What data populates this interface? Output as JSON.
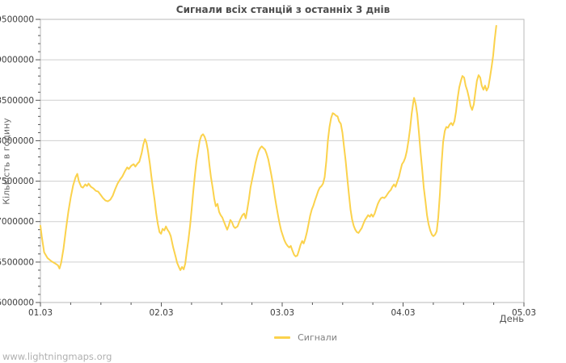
{
  "watermark": "www.lightningmaps.org",
  "chart_data": {
    "type": "line",
    "title": "Сигнали всіх станцій з останніх 3 днів",
    "xlabel": "День",
    "ylabel": "Кількість в годину",
    "xlim": [
      1,
      5
    ],
    "ylim": [
      6000000,
      9500000
    ],
    "grid": "horizontal-only",
    "legend_position": "bottom-center",
    "x_tick_values": [
      1,
      2,
      3,
      4,
      5
    ],
    "x_tick_labels": [
      "01.03",
      "02.03",
      "03.03",
      "04.03",
      "05.03"
    ],
    "x_minor_tick_step": 0.25,
    "y_tick_values": [
      6000000,
      6500000,
      7000000,
      7500000,
      8000000,
      8500000,
      9000000,
      9500000
    ],
    "y_tick_labels": [
      "6000000",
      "6500000",
      "7000000",
      "7500000",
      "8000000",
      "8500000",
      "9000000",
      "9500000"
    ],
    "y_minor_tick_step": 100000,
    "line_color": "#FBD24C",
    "grid_color": "#CFCFCF",
    "axis_color": "#B8B8B8",
    "tick_color": "#555555",
    "tick_label_color": "#3c3c3c",
    "series": [
      {
        "name": "Сигнали",
        "x_unit": "day-of-march",
        "points": [
          [
            1.0,
            6950000
          ],
          [
            1.011,
            6820000
          ],
          [
            1.031,
            6620000
          ],
          [
            1.058,
            6550000
          ],
          [
            1.091,
            6510000
          ],
          [
            1.125,
            6480000
          ],
          [
            1.145,
            6460000
          ],
          [
            1.158,
            6420000
          ],
          [
            1.171,
            6490000
          ],
          [
            1.191,
            6670000
          ],
          [
            1.211,
            6900000
          ],
          [
            1.231,
            7120000
          ],
          [
            1.251,
            7300000
          ],
          [
            1.271,
            7450000
          ],
          [
            1.291,
            7550000
          ],
          [
            1.305,
            7590000
          ],
          [
            1.318,
            7500000
          ],
          [
            1.338,
            7430000
          ],
          [
            1.351,
            7420000
          ],
          [
            1.371,
            7460000
          ],
          [
            1.385,
            7440000
          ],
          [
            1.398,
            7470000
          ],
          [
            1.418,
            7430000
          ],
          [
            1.438,
            7410000
          ],
          [
            1.458,
            7380000
          ],
          [
            1.478,
            7370000
          ],
          [
            1.498,
            7330000
          ],
          [
            1.518,
            7290000
          ],
          [
            1.538,
            7260000
          ],
          [
            1.558,
            7250000
          ],
          [
            1.578,
            7270000
          ],
          [
            1.598,
            7320000
          ],
          [
            1.618,
            7400000
          ],
          [
            1.638,
            7470000
          ],
          [
            1.658,
            7520000
          ],
          [
            1.678,
            7560000
          ],
          [
            1.698,
            7620000
          ],
          [
            1.718,
            7670000
          ],
          [
            1.731,
            7650000
          ],
          [
            1.751,
            7690000
          ],
          [
            1.771,
            7710000
          ],
          [
            1.785,
            7680000
          ],
          [
            1.805,
            7720000
          ],
          [
            1.818,
            7740000
          ],
          [
            1.838,
            7850000
          ],
          [
            1.851,
            7950000
          ],
          [
            1.865,
            8020000
          ],
          [
            1.878,
            7970000
          ],
          [
            1.891,
            7860000
          ],
          [
            1.905,
            7720000
          ],
          [
            1.918,
            7560000
          ],
          [
            1.931,
            7410000
          ],
          [
            1.945,
            7260000
          ],
          [
            1.958,
            7100000
          ],
          [
            1.971,
            6970000
          ],
          [
            1.985,
            6870000
          ],
          [
            1.998,
            6850000
          ],
          [
            2.011,
            6910000
          ],
          [
            2.025,
            6890000
          ],
          [
            2.038,
            6940000
          ],
          [
            2.051,
            6900000
          ],
          [
            2.065,
            6870000
          ],
          [
            2.078,
            6820000
          ],
          [
            2.098,
            6680000
          ],
          [
            2.118,
            6570000
          ],
          [
            2.131,
            6490000
          ],
          [
            2.145,
            6440000
          ],
          [
            2.158,
            6400000
          ],
          [
            2.171,
            6440000
          ],
          [
            2.185,
            6410000
          ],
          [
            2.198,
            6480000
          ],
          [
            2.211,
            6630000
          ],
          [
            2.225,
            6780000
          ],
          [
            2.238,
            6950000
          ],
          [
            2.251,
            7150000
          ],
          [
            2.265,
            7380000
          ],
          [
            2.278,
            7580000
          ],
          [
            2.291,
            7750000
          ],
          [
            2.305,
            7880000
          ],
          [
            2.318,
            8000000
          ],
          [
            2.331,
            8060000
          ],
          [
            2.345,
            8080000
          ],
          [
            2.358,
            8050000
          ],
          [
            2.371,
            7990000
          ],
          [
            2.385,
            7880000
          ],
          [
            2.398,
            7700000
          ],
          [
            2.411,
            7550000
          ],
          [
            2.425,
            7420000
          ],
          [
            2.438,
            7280000
          ],
          [
            2.451,
            7190000
          ],
          [
            2.465,
            7220000
          ],
          [
            2.478,
            7120000
          ],
          [
            2.491,
            7080000
          ],
          [
            2.505,
            7050000
          ],
          [
            2.518,
            7000000
          ],
          [
            2.531,
            6950000
          ],
          [
            2.545,
            6900000
          ],
          [
            2.558,
            6950000
          ],
          [
            2.571,
            7020000
          ],
          [
            2.585,
            6990000
          ],
          [
            2.598,
            6940000
          ],
          [
            2.611,
            6920000
          ],
          [
            2.631,
            6940000
          ],
          [
            2.651,
            7020000
          ],
          [
            2.671,
            7080000
          ],
          [
            2.685,
            7100000
          ],
          [
            2.698,
            7040000
          ],
          [
            2.711,
            7150000
          ],
          [
            2.725,
            7280000
          ],
          [
            2.738,
            7420000
          ],
          [
            2.751,
            7520000
          ],
          [
            2.765,
            7620000
          ],
          [
            2.778,
            7720000
          ],
          [
            2.791,
            7800000
          ],
          [
            2.805,
            7870000
          ],
          [
            2.818,
            7910000
          ],
          [
            2.831,
            7930000
          ],
          [
            2.845,
            7910000
          ],
          [
            2.858,
            7890000
          ],
          [
            2.871,
            7840000
          ],
          [
            2.885,
            7770000
          ],
          [
            2.898,
            7670000
          ],
          [
            2.911,
            7570000
          ],
          [
            2.925,
            7450000
          ],
          [
            2.938,
            7320000
          ],
          [
            2.951,
            7200000
          ],
          [
            2.965,
            7080000
          ],
          [
            2.978,
            6980000
          ],
          [
            2.991,
            6890000
          ],
          [
            3.005,
            6830000
          ],
          [
            3.018,
            6770000
          ],
          [
            3.031,
            6730000
          ],
          [
            3.045,
            6700000
          ],
          [
            3.058,
            6680000
          ],
          [
            3.071,
            6700000
          ],
          [
            3.085,
            6640000
          ],
          [
            3.098,
            6590000
          ],
          [
            3.111,
            6570000
          ],
          [
            3.125,
            6580000
          ],
          [
            3.138,
            6640000
          ],
          [
            3.151,
            6710000
          ],
          [
            3.165,
            6760000
          ],
          [
            3.178,
            6730000
          ],
          [
            3.191,
            6790000
          ],
          [
            3.205,
            6870000
          ],
          [
            3.218,
            6970000
          ],
          [
            3.231,
            7070000
          ],
          [
            3.245,
            7150000
          ],
          [
            3.258,
            7200000
          ],
          [
            3.271,
            7260000
          ],
          [
            3.285,
            7320000
          ],
          [
            3.298,
            7380000
          ],
          [
            3.311,
            7420000
          ],
          [
            3.325,
            7440000
          ],
          [
            3.338,
            7470000
          ],
          [
            3.351,
            7550000
          ],
          [
            3.365,
            7750000
          ],
          [
            3.378,
            8000000
          ],
          [
            3.391,
            8170000
          ],
          [
            3.405,
            8280000
          ],
          [
            3.418,
            8340000
          ],
          [
            3.431,
            8330000
          ],
          [
            3.445,
            8310000
          ],
          [
            3.458,
            8300000
          ],
          [
            3.471,
            8240000
          ],
          [
            3.485,
            8210000
          ],
          [
            3.498,
            8100000
          ],
          [
            3.511,
            7930000
          ],
          [
            3.525,
            7750000
          ],
          [
            3.538,
            7550000
          ],
          [
            3.551,
            7350000
          ],
          [
            3.565,
            7150000
          ],
          [
            3.578,
            7030000
          ],
          [
            3.591,
            6950000
          ],
          [
            3.605,
            6900000
          ],
          [
            3.618,
            6870000
          ],
          [
            3.631,
            6860000
          ],
          [
            3.645,
            6890000
          ],
          [
            3.658,
            6920000
          ],
          [
            3.671,
            6970000
          ],
          [
            3.685,
            7020000
          ],
          [
            3.698,
            7050000
          ],
          [
            3.711,
            7080000
          ],
          [
            3.725,
            7060000
          ],
          [
            3.738,
            7090000
          ],
          [
            3.751,
            7060000
          ],
          [
            3.765,
            7100000
          ],
          [
            3.778,
            7160000
          ],
          [
            3.791,
            7220000
          ],
          [
            3.805,
            7260000
          ],
          [
            3.818,
            7290000
          ],
          [
            3.831,
            7300000
          ],
          [
            3.845,
            7290000
          ],
          [
            3.858,
            7310000
          ],
          [
            3.871,
            7340000
          ],
          [
            3.885,
            7370000
          ],
          [
            3.898,
            7390000
          ],
          [
            3.911,
            7430000
          ],
          [
            3.925,
            7460000
          ],
          [
            3.938,
            7430000
          ],
          [
            3.951,
            7490000
          ],
          [
            3.965,
            7550000
          ],
          [
            3.978,
            7630000
          ],
          [
            3.991,
            7710000
          ],
          [
            4.005,
            7740000
          ],
          [
            4.018,
            7790000
          ],
          [
            4.031,
            7870000
          ],
          [
            4.045,
            8000000
          ],
          [
            4.058,
            8150000
          ],
          [
            4.071,
            8330000
          ],
          [
            4.085,
            8480000
          ],
          [
            4.091,
            8530000
          ],
          [
            4.105,
            8450000
          ],
          [
            4.118,
            8320000
          ],
          [
            4.131,
            8100000
          ],
          [
            4.145,
            7850000
          ],
          [
            4.158,
            7650000
          ],
          [
            4.171,
            7420000
          ],
          [
            4.185,
            7250000
          ],
          [
            4.198,
            7080000
          ],
          [
            4.211,
            6970000
          ],
          [
            4.225,
            6890000
          ],
          [
            4.238,
            6840000
          ],
          [
            4.251,
            6820000
          ],
          [
            4.265,
            6840000
          ],
          [
            4.278,
            6880000
          ],
          [
            4.291,
            7050000
          ],
          [
            4.305,
            7350000
          ],
          [
            4.318,
            7700000
          ],
          [
            4.331,
            7980000
          ],
          [
            4.345,
            8120000
          ],
          [
            4.358,
            8170000
          ],
          [
            4.371,
            8160000
          ],
          [
            4.385,
            8200000
          ],
          [
            4.398,
            8220000
          ],
          [
            4.411,
            8190000
          ],
          [
            4.425,
            8240000
          ],
          [
            4.438,
            8360000
          ],
          [
            4.451,
            8520000
          ],
          [
            4.465,
            8660000
          ],
          [
            4.478,
            8740000
          ],
          [
            4.491,
            8800000
          ],
          [
            4.505,
            8780000
          ],
          [
            4.518,
            8680000
          ],
          [
            4.531,
            8620000
          ],
          [
            4.545,
            8530000
          ],
          [
            4.558,
            8430000
          ],
          [
            4.571,
            8380000
          ],
          [
            4.585,
            8450000
          ],
          [
            4.598,
            8600000
          ],
          [
            4.611,
            8740000
          ],
          [
            4.625,
            8810000
          ],
          [
            4.638,
            8780000
          ],
          [
            4.651,
            8680000
          ],
          [
            4.665,
            8630000
          ],
          [
            4.678,
            8680000
          ],
          [
            4.691,
            8620000
          ],
          [
            4.705,
            8660000
          ],
          [
            4.718,
            8770000
          ],
          [
            4.731,
            8900000
          ],
          [
            4.745,
            9050000
          ],
          [
            4.758,
            9250000
          ],
          [
            4.771,
            9420000
          ]
        ]
      }
    ]
  }
}
